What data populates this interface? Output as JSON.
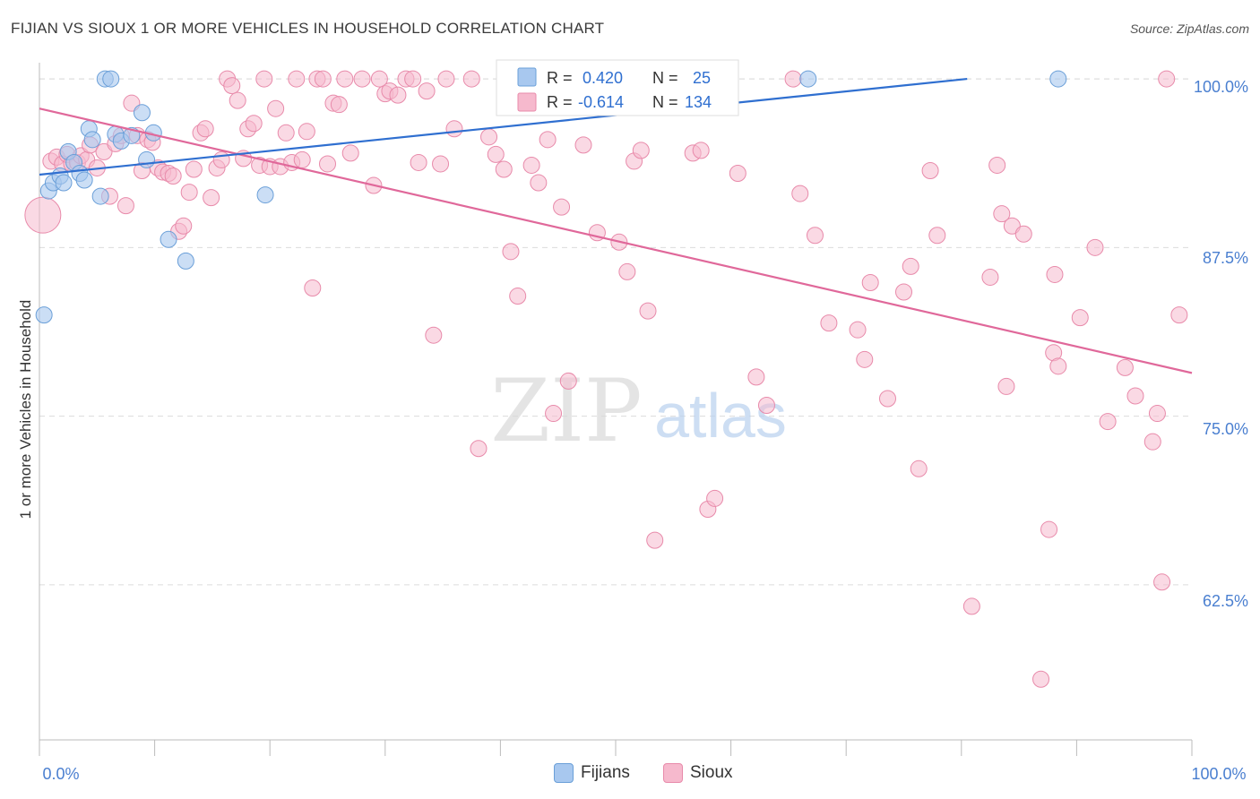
{
  "header": {
    "title": "FIJIAN VS SIOUX 1 OR MORE VEHICLES IN HOUSEHOLD CORRELATION CHART",
    "source": "Source: ZipAtlas.com"
  },
  "watermark": {
    "zip": "ZIP",
    "atlas": "atlas"
  },
  "colors": {
    "fijians_fill": "#a8c8ef",
    "fijians_stroke": "#6a9fd8",
    "fijians_line": "#2f6fd0",
    "sioux_fill": "#f6b9cd",
    "sioux_stroke": "#e88aaa",
    "sioux_line": "#e0689a",
    "axis_text": "#4a7fd0",
    "grid": "#dcdcdc"
  },
  "legend_box": {
    "rows": [
      {
        "r_label": "R =",
        "r_value": "0.420",
        "n_label": "N =",
        "n_value": "25"
      },
      {
        "r_label": "R =",
        "r_value": "-0.614",
        "n_label": "N =",
        "n_value": "134"
      }
    ]
  },
  "legend_bottom": {
    "fijians": "Fijians",
    "sioux": "Sioux"
  },
  "chart_data": {
    "type": "scatter",
    "title": "FIJIAN VS SIOUX 1 OR MORE VEHICLES IN HOUSEHOLD CORRELATION CHART",
    "xlabel": "",
    "ylabel": "1 or more Vehicles in Household",
    "xlim": [
      0,
      100
    ],
    "ylim": [
      51,
      101.2
    ],
    "x_tick_labels": [
      "0.0%",
      "100.0%"
    ],
    "y_ticks": [
      62.5,
      75.0,
      87.5,
      100.0
    ],
    "y_tick_labels": [
      "62.5%",
      "75.0%",
      "87.5%",
      "100.0%"
    ],
    "grid": true,
    "series": [
      {
        "name": "Fijians",
        "r": 0.42,
        "n": 25,
        "trend": {
          "x": [
            0,
            80.5
          ],
          "y": [
            92.9,
            100.0
          ]
        },
        "points": [
          [
            0.4,
            82.5
          ],
          [
            0.8,
            91.7
          ],
          [
            1.2,
            92.3
          ],
          [
            1.8,
            92.8
          ],
          [
            2.1,
            92.3
          ],
          [
            2.5,
            94.6
          ],
          [
            3.0,
            93.8
          ],
          [
            3.5,
            93.0
          ],
          [
            3.9,
            92.5
          ],
          [
            4.3,
            96.3
          ],
          [
            4.6,
            95.5
          ],
          [
            5.3,
            91.3
          ],
          [
            5.7,
            100.0
          ],
          [
            6.2,
            100.0
          ],
          [
            6.6,
            95.9
          ],
          [
            7.1,
            95.4
          ],
          [
            8.0,
            95.8
          ],
          [
            9.9,
            96.0
          ],
          [
            8.9,
            97.5
          ],
          [
            11.2,
            88.1
          ],
          [
            12.7,
            86.5
          ],
          [
            9.3,
            94.0
          ],
          [
            19.6,
            91.4
          ],
          [
            66.7,
            100.0
          ],
          [
            88.4,
            100.0
          ]
        ]
      },
      {
        "name": "Sioux",
        "r": -0.614,
        "n": 134,
        "trend": {
          "x": [
            0,
            100
          ],
          "y": [
            97.8,
            78.2
          ]
        },
        "points": [
          [
            0.3,
            89.9
          ],
          [
            1.0,
            93.9
          ],
          [
            1.5,
            94.2
          ],
          [
            2.0,
            93.7
          ],
          [
            2.4,
            94.4
          ],
          [
            2.8,
            93.7
          ],
          [
            3.3,
            93.8
          ],
          [
            3.6,
            94.3
          ],
          [
            4.1,
            94.0
          ],
          [
            4.4,
            95.1
          ],
          [
            5.0,
            93.4
          ],
          [
            5.6,
            94.6
          ],
          [
            6.1,
            91.3
          ],
          [
            6.6,
            95.2
          ],
          [
            7.1,
            95.8
          ],
          [
            7.5,
            90.6
          ],
          [
            8.0,
            98.2
          ],
          [
            8.5,
            95.8
          ],
          [
            8.9,
            93.2
          ],
          [
            9.4,
            95.5
          ],
          [
            9.8,
            95.3
          ],
          [
            10.3,
            93.4
          ],
          [
            10.7,
            93.1
          ],
          [
            11.2,
            93.0
          ],
          [
            11.6,
            92.8
          ],
          [
            12.1,
            88.7
          ],
          [
            12.5,
            89.1
          ],
          [
            13.0,
            91.6
          ],
          [
            13.4,
            93.3
          ],
          [
            14.0,
            96.0
          ],
          [
            14.4,
            96.3
          ],
          [
            14.9,
            91.2
          ],
          [
            15.4,
            93.4
          ],
          [
            15.8,
            94.0
          ],
          [
            16.3,
            100.0
          ],
          [
            16.7,
            99.5
          ],
          [
            17.2,
            98.4
          ],
          [
            17.7,
            94.1
          ],
          [
            18.1,
            96.3
          ],
          [
            18.6,
            96.7
          ],
          [
            19.1,
            93.6
          ],
          [
            19.5,
            100.0
          ],
          [
            20.0,
            93.5
          ],
          [
            20.5,
            97.8
          ],
          [
            20.9,
            93.5
          ],
          [
            21.4,
            96.0
          ],
          [
            21.9,
            93.8
          ],
          [
            22.3,
            100.0
          ],
          [
            22.8,
            94.0
          ],
          [
            23.2,
            96.1
          ],
          [
            23.7,
            84.5
          ],
          [
            24.1,
            100.0
          ],
          [
            24.6,
            100.0
          ],
          [
            25.0,
            93.7
          ],
          [
            25.5,
            98.2
          ],
          [
            26.0,
            98.1
          ],
          [
            26.5,
            100.0
          ],
          [
            27.0,
            94.5
          ],
          [
            28.0,
            100.0
          ],
          [
            29.0,
            92.1
          ],
          [
            29.5,
            100.0
          ],
          [
            30.0,
            98.9
          ],
          [
            30.4,
            99.1
          ],
          [
            31.1,
            98.8
          ],
          [
            31.8,
            100.0
          ],
          [
            32.4,
            100.0
          ],
          [
            32.9,
            93.8
          ],
          [
            33.6,
            99.1
          ],
          [
            34.2,
            81.0
          ],
          [
            34.8,
            93.7
          ],
          [
            35.3,
            100.0
          ],
          [
            36.0,
            96.3
          ],
          [
            37.5,
            100.0
          ],
          [
            38.1,
            72.6
          ],
          [
            39.0,
            95.7
          ],
          [
            39.6,
            94.4
          ],
          [
            40.3,
            93.3
          ],
          [
            40.9,
            87.2
          ],
          [
            41.5,
            83.9
          ],
          [
            42.7,
            93.6
          ],
          [
            43.3,
            92.3
          ],
          [
            44.6,
            75.2
          ],
          [
            44.1,
            95.5
          ],
          [
            45.3,
            90.5
          ],
          [
            45.9,
            77.6
          ],
          [
            47.2,
            95.1
          ],
          [
            48.4,
            88.6
          ],
          [
            49.7,
            100.0
          ],
          [
            50.3,
            87.9
          ],
          [
            51.0,
            85.7
          ],
          [
            51.6,
            93.9
          ],
          [
            52.2,
            94.7
          ],
          [
            52.8,
            82.8
          ],
          [
            53.4,
            65.8
          ],
          [
            56.7,
            94.5
          ],
          [
            57.4,
            94.7
          ],
          [
            58.0,
            68.1
          ],
          [
            58.6,
            68.9
          ],
          [
            60.6,
            93.0
          ],
          [
            62.2,
            77.9
          ],
          [
            63.1,
            75.8
          ],
          [
            65.4,
            100.0
          ],
          [
            66.0,
            91.5
          ],
          [
            67.3,
            88.4
          ],
          [
            68.5,
            81.9
          ],
          [
            71.0,
            81.4
          ],
          [
            71.6,
            79.2
          ],
          [
            72.1,
            84.9
          ],
          [
            73.6,
            76.3
          ],
          [
            75.0,
            84.2
          ],
          [
            75.6,
            86.1
          ],
          [
            76.3,
            71.1
          ],
          [
            77.3,
            93.2
          ],
          [
            77.9,
            88.4
          ],
          [
            80.9,
            60.9
          ],
          [
            82.5,
            85.3
          ],
          [
            83.1,
            93.6
          ],
          [
            83.5,
            90.0
          ],
          [
            83.9,
            77.2
          ],
          [
            84.4,
            89.1
          ],
          [
            85.4,
            88.5
          ],
          [
            86.9,
            55.5
          ],
          [
            87.6,
            66.6
          ],
          [
            88.0,
            79.7
          ],
          [
            88.4,
            78.7
          ],
          [
            88.1,
            85.5
          ],
          [
            90.3,
            82.3
          ],
          [
            91.6,
            87.5
          ],
          [
            92.7,
            74.6
          ],
          [
            94.2,
            78.6
          ],
          [
            95.1,
            76.5
          ],
          [
            96.6,
            73.1
          ],
          [
            97.0,
            75.2
          ],
          [
            97.4,
            62.7
          ],
          [
            97.8,
            100.0
          ],
          [
            98.9,
            82.5
          ]
        ]
      }
    ]
  }
}
